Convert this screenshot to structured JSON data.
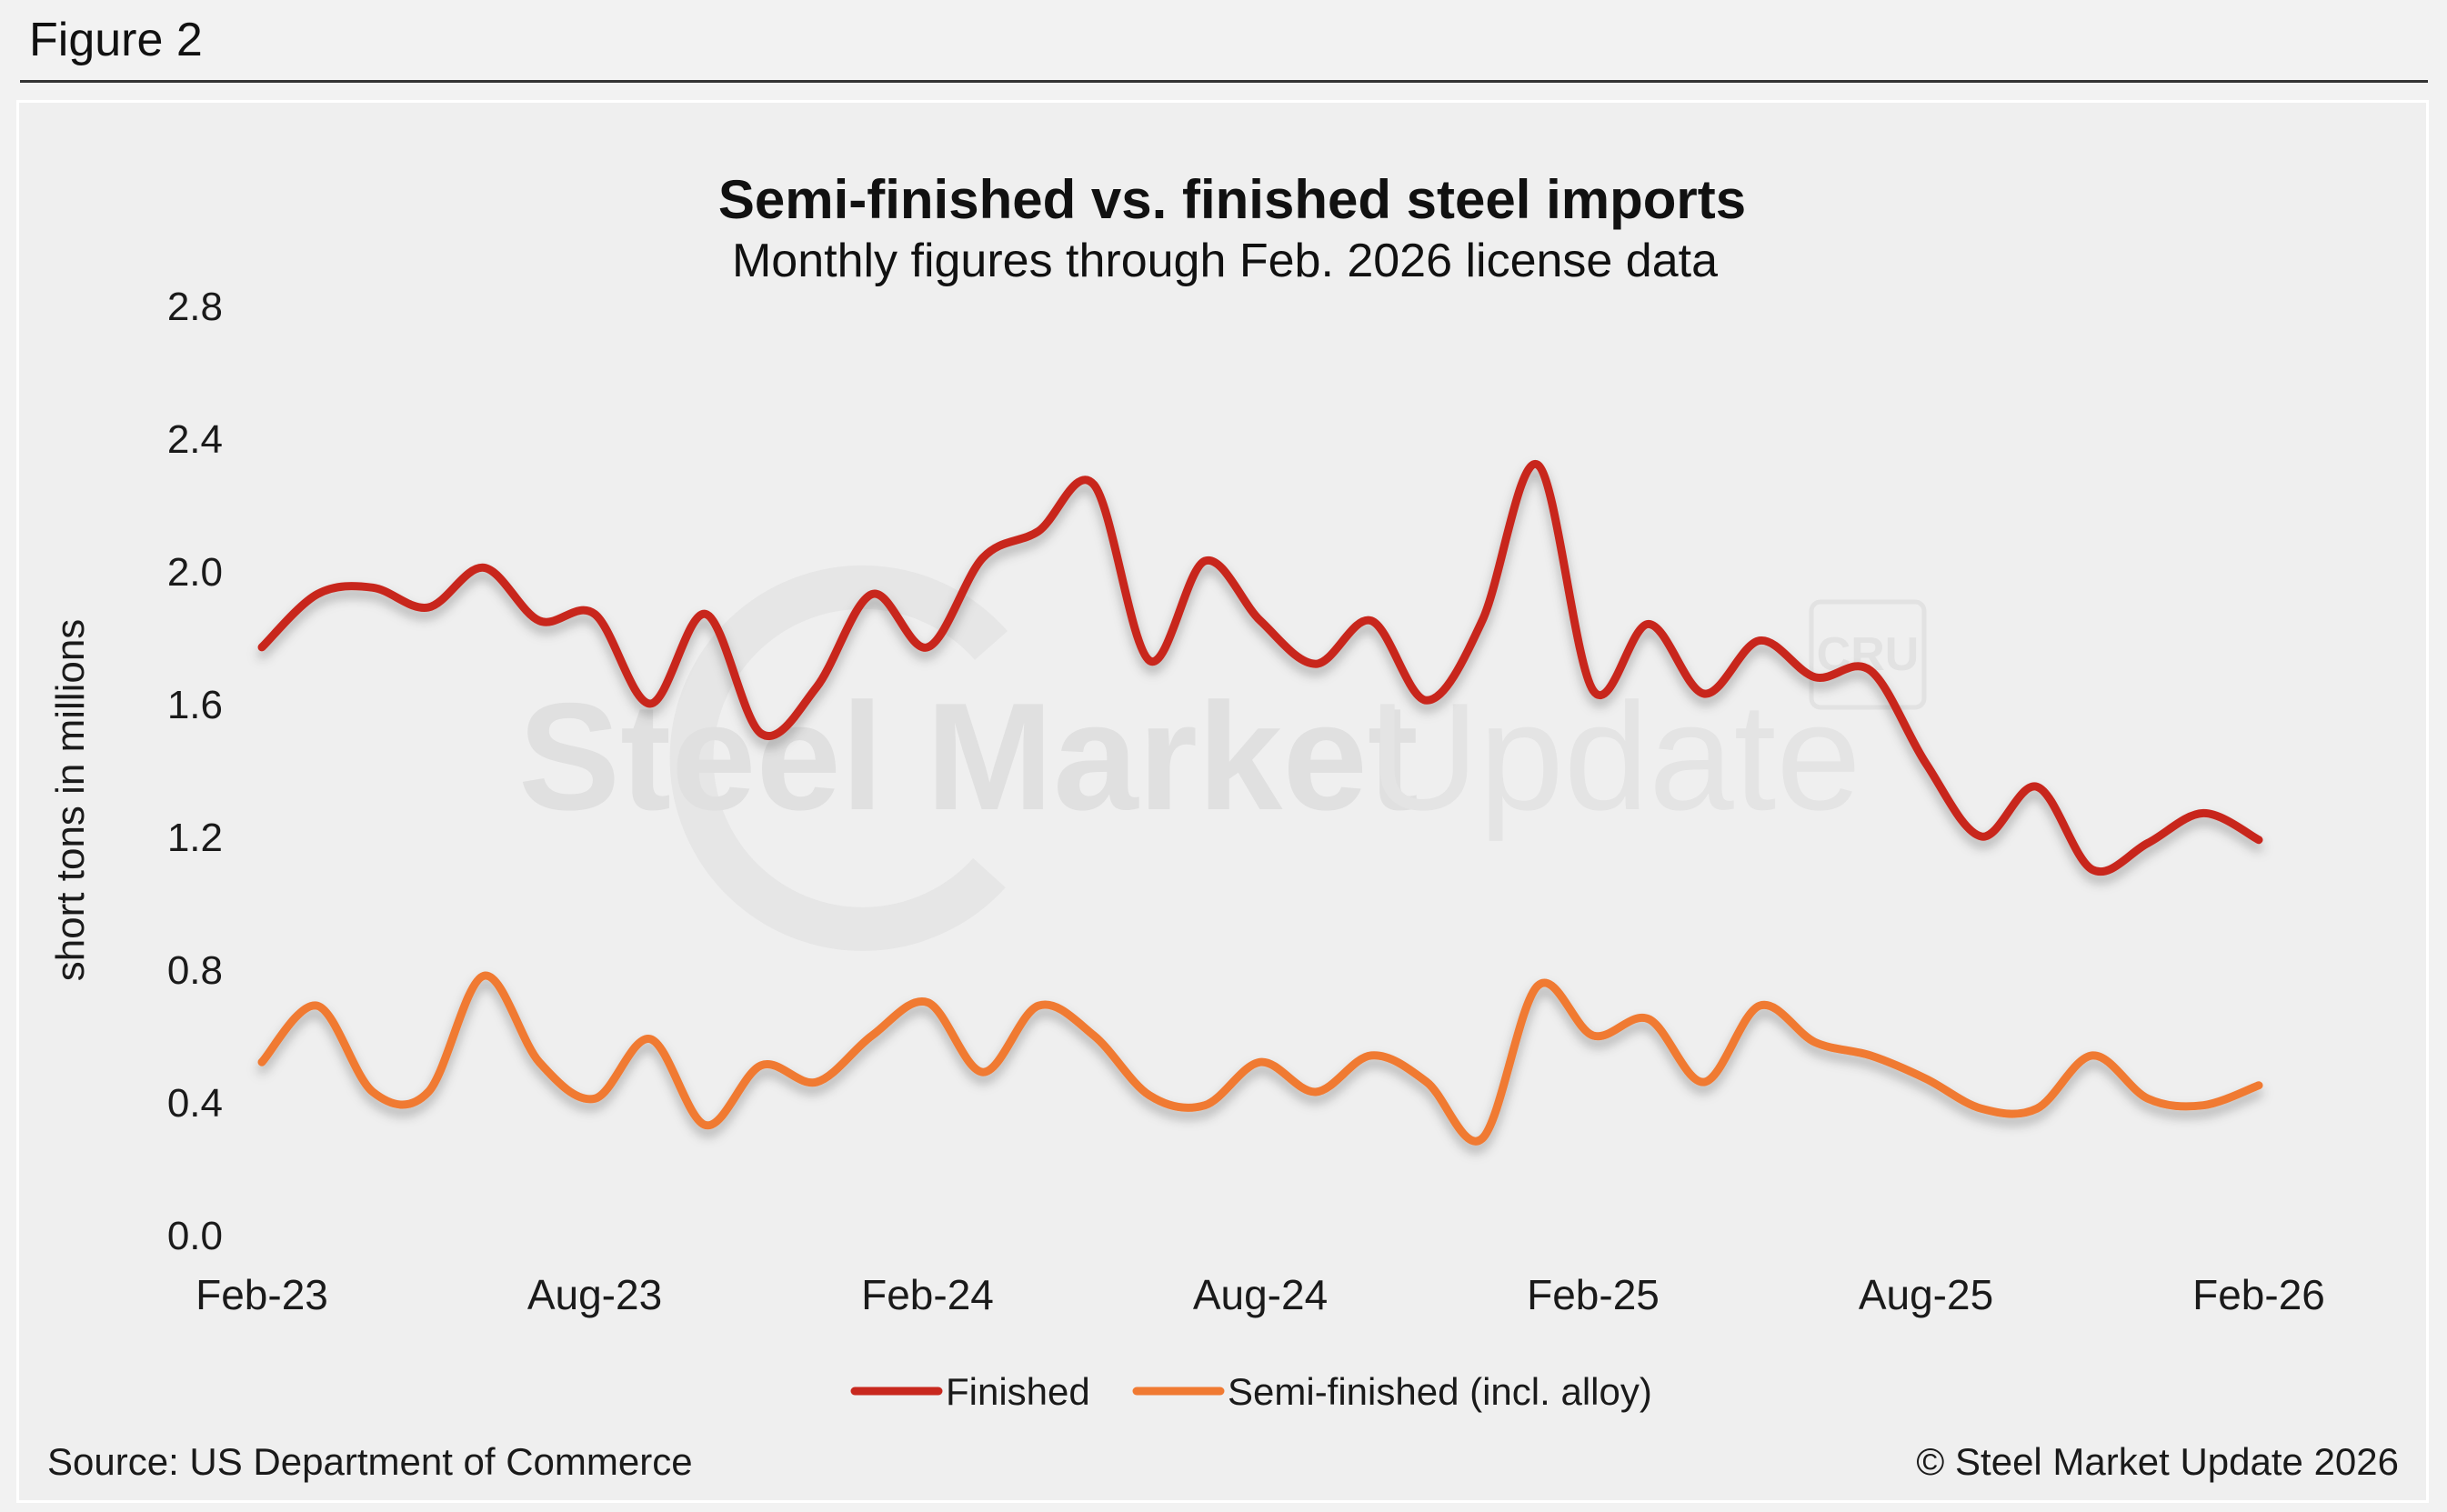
{
  "figure_label": "Figure 2",
  "source": "Source: US Department of Commerce",
  "copyright": "© Steel Market Update 2026",
  "watermark": {
    "text_bold": "Steel Market",
    "text_light": "Update",
    "badge": "CRU"
  },
  "colors": {
    "finished": "#c8281e",
    "semi": "#f07a32",
    "text": "#1a1a1a",
    "watermark": "#e2e2e2"
  },
  "chart_data": {
    "type": "line",
    "title": "Semi-finished vs. finished steel imports",
    "subtitle": "Monthly figures through Feb. 2026 license data",
    "ylabel": "short tons in millions",
    "ylim": [
      0,
      2.8
    ],
    "yticks": [
      "0.0",
      "0.4",
      "0.8",
      "1.2",
      "1.6",
      "2.0",
      "2.4",
      "2.8"
    ],
    "ytick_values": [
      0,
      0.4,
      0.8,
      1.2,
      1.6,
      2.0,
      2.4,
      2.8
    ],
    "xtick_labels": [
      "Feb-23",
      "Aug-23",
      "Feb-24",
      "Aug-24",
      "Feb-25",
      "Aug-25",
      "Feb-26"
    ],
    "xtick_positions": [
      0,
      6,
      12,
      18,
      24,
      30,
      36
    ],
    "x": [
      "Feb-23",
      "Mar-23",
      "Apr-23",
      "May-23",
      "Jun-23",
      "Jul-23",
      "Aug-23",
      "Sep-23",
      "Oct-23",
      "Nov-23",
      "Dec-23",
      "Jan-24",
      "Feb-24",
      "Mar-24",
      "Apr-24",
      "May-24",
      "Jun-24",
      "Jul-24",
      "Aug-24",
      "Sep-24",
      "Oct-24",
      "Nov-24",
      "Dec-24",
      "Jan-25",
      "Feb-25",
      "Mar-25",
      "Apr-25",
      "May-25",
      "Jun-25",
      "Jul-25",
      "Aug-25",
      "Sep-25",
      "Oct-25",
      "Nov-25",
      "Dec-25",
      "Jan-26",
      "Feb-26"
    ],
    "legend": "bottom-center",
    "grid": false,
    "series": [
      {
        "name": "Finished",
        "values": [
          1.77,
          1.93,
          1.95,
          1.89,
          2.01,
          1.85,
          1.87,
          1.6,
          1.87,
          1.51,
          1.65,
          1.93,
          1.77,
          2.04,
          2.12,
          2.26,
          1.73,
          2.03,
          1.85,
          1.72,
          1.85,
          1.61,
          1.85,
          2.32,
          1.64,
          1.84,
          1.63,
          1.79,
          1.68,
          1.7,
          1.42,
          1.2,
          1.35,
          1.1,
          1.18,
          1.27,
          1.19
        ]
      },
      {
        "name": "Semi-finished (incl. alloy)",
        "values": [
          0.52,
          0.69,
          0.43,
          0.43,
          0.78,
          0.52,
          0.41,
          0.59,
          0.33,
          0.51,
          0.46,
          0.6,
          0.7,
          0.49,
          0.69,
          0.6,
          0.42,
          0.39,
          0.52,
          0.43,
          0.54,
          0.46,
          0.29,
          0.75,
          0.6,
          0.65,
          0.46,
          0.69,
          0.58,
          0.54,
          0.47,
          0.38,
          0.38,
          0.54,
          0.41,
          0.39,
          0.45
        ]
      }
    ]
  }
}
